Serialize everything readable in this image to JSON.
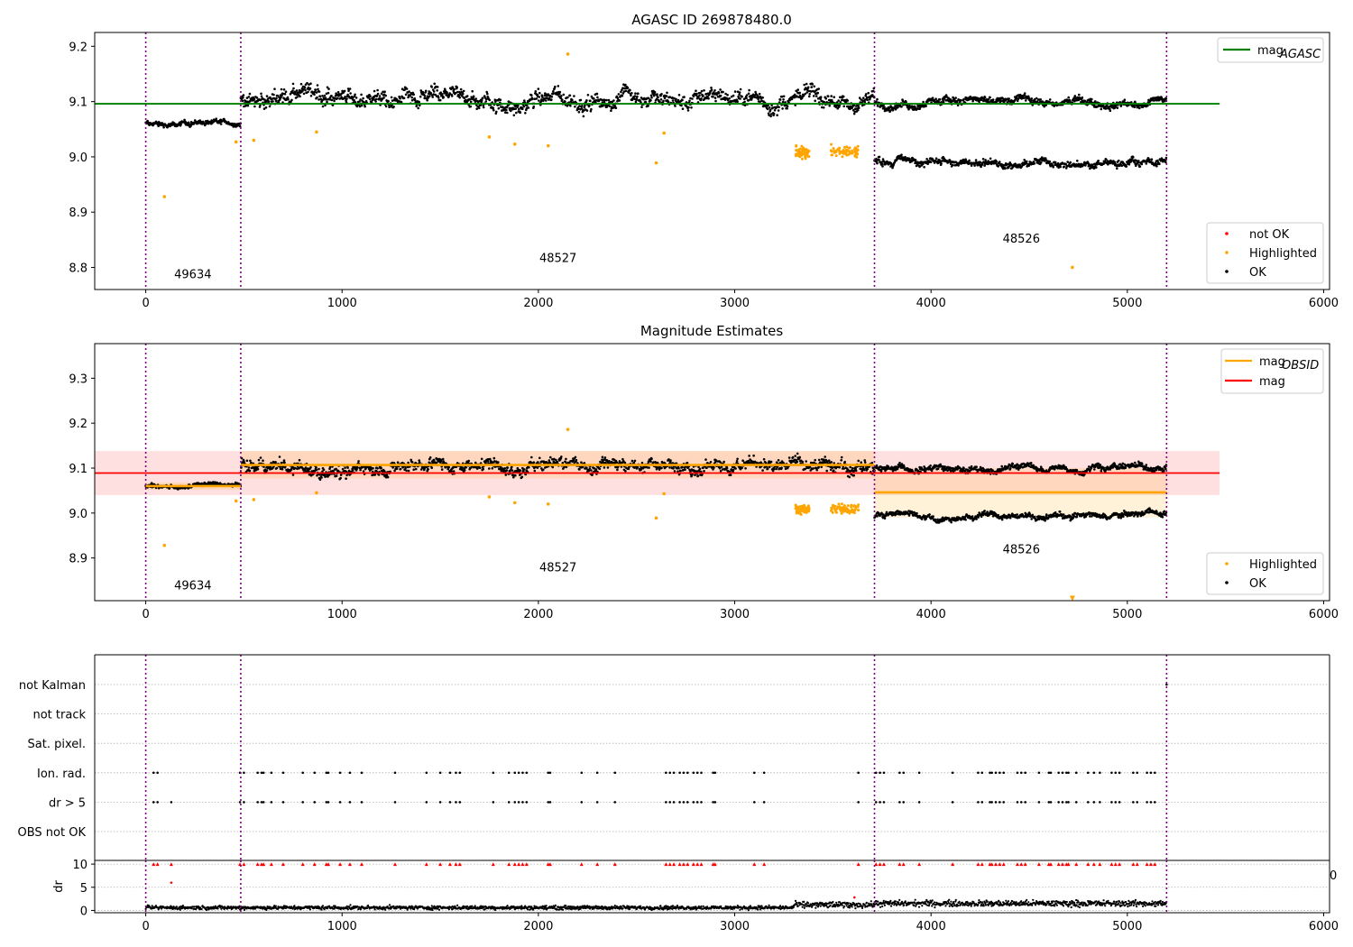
{
  "figure": {
    "background": "#ffffff"
  },
  "colors": {
    "ok": "#000000",
    "highlighted": "#ffa500",
    "not_ok": "#ff0000",
    "mag_agasc": "#008000",
    "mag_line": "#ff0000",
    "mag_obsid": "#ffa500",
    "obsid_divider": "#800080",
    "grid": "#b0b0b0"
  },
  "chart_data": [
    {
      "id": "panel1",
      "type": "scatter",
      "title": "AGASC ID 269878480.0",
      "xlim": [
        -260,
        6030
      ],
      "ylim": [
        8.76,
        9.225
      ],
      "xticks": [
        0,
        1000,
        2000,
        3000,
        4000,
        5000,
        6000
      ],
      "yticks": [
        8.8,
        8.9,
        9.0,
        9.1,
        9.2
      ],
      "ytick_labels": [
        "8.8",
        "8.9",
        "9.0",
        "9.1",
        "9.2"
      ],
      "obsid_boundaries": [
        0,
        484,
        3712,
        5200
      ],
      "obsid_labels": [
        {
          "text": "49634",
          "x": 240,
          "y": 8.78
        },
        {
          "text": "48527",
          "x": 2100,
          "y": 8.81
        },
        {
          "text": "48526",
          "x": 4460,
          "y": 8.845
        }
      ],
      "reference_lines": [
        {
          "name_main": "mag",
          "name_sub": "AGASC",
          "y": 9.096,
          "x_range": [
            -260,
            5470
          ],
          "color": "#008000"
        }
      ],
      "ok_segments": [
        {
          "x": [
            0,
            484
          ],
          "center": 9.06,
          "spread": 0.008
        },
        {
          "x": [
            484,
            3712
          ],
          "center": 9.105,
          "spread": 0.025
        },
        {
          "x": [
            3712,
            5200
          ],
          "center": 9.1,
          "spread": 0.012
        },
        {
          "x": [
            3712,
            5200
          ],
          "center": 8.993,
          "spread": 0.012
        }
      ],
      "highlighted_clusters": [
        {
          "x": [
            3310,
            3380
          ],
          "center": 9.008
        },
        {
          "x": [
            3490,
            3630
          ],
          "center": 9.01
        }
      ],
      "highlighted_points": [
        {
          "x": 95,
          "y": 8.928
        },
        {
          "x": 460,
          "y": 9.027
        },
        {
          "x": 550,
          "y": 9.03
        },
        {
          "x": 870,
          "y": 9.045
        },
        {
          "x": 1750,
          "y": 9.036
        },
        {
          "x": 1880,
          "y": 9.023
        },
        {
          "x": 2050,
          "y": 9.02
        },
        {
          "x": 2150,
          "y": 9.186
        },
        {
          "x": 2600,
          "y": 8.989
        },
        {
          "x": 2640,
          "y": 9.043
        },
        {
          "x": 4720,
          "y": 8.8
        }
      ],
      "legends": [
        {
          "position": "top-right",
          "entries": [
            {
              "kind": "line",
              "color": "#008000",
              "label": "mag",
              "sub": "AGASC"
            }
          ]
        },
        {
          "position": "lower-right",
          "entries": [
            {
              "kind": "marker",
              "color": "#ff0000",
              "label": "not OK"
            },
            {
              "kind": "marker",
              "color": "#ffa500",
              "label": "Highlighted"
            },
            {
              "kind": "marker",
              "color": "#000000",
              "label": "OK"
            }
          ]
        }
      ]
    },
    {
      "id": "panel2",
      "type": "scatter",
      "title": "Magnitude Estimates",
      "xlim": [
        -260,
        6030
      ],
      "ylim": [
        8.805,
        9.377
      ],
      "xticks": [
        0,
        1000,
        2000,
        3000,
        4000,
        5000,
        6000
      ],
      "yticks": [
        8.9,
        9.0,
        9.1,
        9.2,
        9.3
      ],
      "ytick_labels": [
        "8.9",
        "9.0",
        "9.1",
        "9.2",
        "9.3"
      ],
      "obsid_boundaries": [
        0,
        484,
        3712,
        5200
      ],
      "obsid_labels": [
        {
          "text": "49634",
          "x": 240,
          "y": 8.83
        },
        {
          "text": "48527",
          "x": 2100,
          "y": 8.87
        },
        {
          "text": "48526",
          "x": 4460,
          "y": 8.91
        }
      ],
      "mag_band": {
        "y": 9.089,
        "low": 9.04,
        "high": 9.138,
        "x_range": [
          -260,
          5470
        ],
        "color": "#ff0000"
      },
      "obsid_mags": [
        {
          "x_range": [
            0,
            484
          ],
          "y": 9.06,
          "low": 9.052,
          "high": 9.068
        },
        {
          "x_range": [
            484,
            3712
          ],
          "y": 9.107,
          "low": 9.077,
          "high": 9.138
        },
        {
          "x_range": [
            3712,
            5200
          ],
          "y": 9.046,
          "low": 8.99,
          "high": 9.1
        }
      ],
      "ok_segments": [
        {
          "x": [
            0,
            484
          ],
          "center": 9.06,
          "spread": 0.008
        },
        {
          "x": [
            484,
            3712
          ],
          "center": 9.105,
          "spread": 0.025
        },
        {
          "x": [
            3712,
            5200
          ],
          "center": 9.1,
          "spread": 0.012
        },
        {
          "x": [
            3712,
            5200
          ],
          "center": 8.993,
          "spread": 0.012
        }
      ],
      "highlighted_clusters": [
        {
          "x": [
            3310,
            3380
          ],
          "center": 9.008
        },
        {
          "x": [
            3490,
            3630
          ],
          "center": 9.01
        }
      ],
      "highlighted_points": [
        {
          "x": 95,
          "y": 8.928
        },
        {
          "x": 460,
          "y": 9.027
        },
        {
          "x": 550,
          "y": 9.03
        },
        {
          "x": 870,
          "y": 9.045
        },
        {
          "x": 1750,
          "y": 9.036
        },
        {
          "x": 1880,
          "y": 9.023
        },
        {
          "x": 2050,
          "y": 9.02
        },
        {
          "x": 2150,
          "y": 9.186
        },
        {
          "x": 2600,
          "y": 8.989
        },
        {
          "x": 2640,
          "y": 9.043
        }
      ],
      "offscale_markers": [
        {
          "x": 4720,
          "y": 8.81,
          "color": "#ffa500",
          "symbol": "triangle-down"
        }
      ],
      "legends": [
        {
          "position": "top-right",
          "entries": [
            {
              "kind": "line",
              "color": "#ffa500",
              "label": "mag",
              "sub": "OBSID"
            },
            {
              "kind": "line",
              "color": "#ff0000",
              "label": "mag",
              "sub": ""
            }
          ]
        },
        {
          "position": "lower-right",
          "entries": [
            {
              "kind": "marker",
              "color": "#ffa500",
              "label": "Highlighted"
            },
            {
              "kind": "marker",
              "color": "#000000",
              "label": "OK"
            }
          ]
        }
      ]
    },
    {
      "id": "panel3-flags",
      "type": "scatter",
      "categories": [
        "not Kalman",
        "not track",
        "Sat. pixel.",
        "Ion. rad.",
        "dr > 5",
        "OBS not OK"
      ],
      "flag_x": {
        "Ion. rad.": [
          40,
          60,
          480,
          500,
          570,
          590,
          600,
          640,
          700,
          800,
          860,
          920,
          930,
          990,
          1040,
          1100,
          1270,
          1430,
          1500,
          1550,
          1580,
          1600,
          1770,
          1850,
          1880,
          1900,
          1920,
          1940,
          2050,
          2060,
          2220,
          2300,
          2390,
          2650,
          2670,
          2690,
          2720,
          2740,
          2760,
          2790,
          2810,
          2830,
          2890,
          2900,
          3100,
          3150,
          3630,
          3720,
          3740,
          3760,
          3840,
          3860,
          3940,
          4110,
          4240,
          4260,
          4300,
          4310,
          4330,
          4350,
          4370,
          4440,
          4460,
          4480,
          4550,
          4600,
          4610,
          4650,
          4670,
          4690,
          4700,
          4740,
          4800,
          4830,
          4860,
          4920,
          4940,
          4960,
          5030,
          5050,
          5100,
          5120,
          5140
        ],
        "dr > 5": [
          40,
          60,
          130,
          480,
          500,
          570,
          590,
          600,
          640,
          700,
          800,
          860,
          920,
          930,
          990,
          1040,
          1100,
          1270,
          1430,
          1500,
          1550,
          1580,
          1600,
          1770,
          1850,
          1880,
          1900,
          1920,
          1940,
          2050,
          2060,
          2220,
          2300,
          2390,
          2650,
          2670,
          2690,
          2720,
          2740,
          2760,
          2790,
          2810,
          2830,
          2890,
          2900,
          3100,
          3150,
          3630,
          3720,
          3740,
          3760,
          3840,
          3860,
          3940,
          4110,
          4240,
          4260,
          4300,
          4310,
          4330,
          4350,
          4370,
          4440,
          4460,
          4480,
          4550,
          4600,
          4610,
          4650,
          4670,
          4690,
          4700,
          4740,
          4800,
          4830,
          4860,
          4920,
          4940,
          4960,
          5030,
          5050,
          5100,
          5120,
          5140
        ],
        "not Kalman": [
          5200
        ]
      },
      "xlim": [
        -260,
        6030
      ],
      "obsid_boundaries": [
        0,
        484,
        3712,
        5200
      ],
      "overflow_label": "0"
    },
    {
      "id": "panel3-dr",
      "type": "scatter",
      "ylabel": "dr",
      "xlim": [
        -260,
        6030
      ],
      "ylim": [
        -0.5,
        10.8
      ],
      "yticks": [
        0,
        5,
        10
      ],
      "ytick_labels": [
        "0",
        "5",
        "10"
      ],
      "xticks": [
        0,
        1000,
        2000,
        3000,
        4000,
        5000,
        6000
      ],
      "obsid_boundaries": [
        0,
        484,
        3712,
        5200
      ],
      "dr_trace": [
        {
          "x": [
            0,
            3300
          ],
          "center": 0.6,
          "spread": 0.5
        },
        {
          "x": [
            3300,
            3712
          ],
          "center": 1.2,
          "spread": 0.8
        },
        {
          "x": [
            3712,
            5200
          ],
          "center": 1.5,
          "spread": 0.8
        }
      ],
      "dr_outliers": [
        {
          "x": 130,
          "y": 6.0
        },
        {
          "x": 3610,
          "y": 2.8
        }
      ],
      "clipped_level": 10,
      "clipped_x_source": "dr > 5"
    }
  ]
}
